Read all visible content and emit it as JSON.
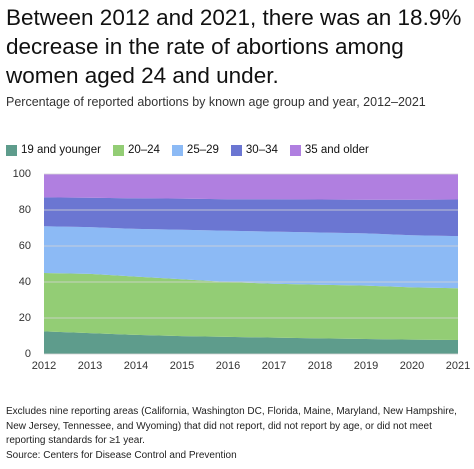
{
  "chart_data": {
    "type": "stacked-area",
    "title": "Between 2012 and 2021, there was an 18.9% decrease in the rate of abortions among women aged 24 and under.",
    "subtitle": "Percentage of reported abortions by known age group and year, 2012–2021",
    "x": [
      2012,
      2013,
      2014,
      2015,
      2016,
      2017,
      2018,
      2019,
      2020,
      2021
    ],
    "xlim": [
      2012,
      2021
    ],
    "xticks": [
      2012,
      2013,
      2014,
      2015,
      2016,
      2017,
      2018,
      2019,
      2020,
      2021
    ],
    "ylim": [
      0,
      100
    ],
    "yticks": [
      0,
      20,
      40,
      60,
      80,
      100
    ],
    "grid": true,
    "series": [
      {
        "name": "19 and younger",
        "color": "#5e9c8c",
        "values": [
          12.6,
          11.6,
          10.6,
          9.9,
          9.5,
          9.1,
          8.7,
          8.3,
          8.0,
          7.8
        ]
      },
      {
        "name": "20–24",
        "color": "#93cd75",
        "values": [
          32.4,
          32.9,
          32.4,
          31.6,
          30.5,
          29.9,
          29.8,
          29.7,
          29.0,
          28.7
        ]
      },
      {
        "name": "25–29",
        "color": "#8cbaf5",
        "values": [
          26,
          26,
          26.5,
          27.5,
          28.5,
          29,
          29,
          29,
          29,
          29
        ]
      },
      {
        "name": "30–34",
        "color": "#6b76d2",
        "values": [
          16,
          16.3,
          17,
          17.3,
          17.5,
          18,
          18.3,
          18.7,
          19.7,
          20.3
        ]
      },
      {
        "name": "35 and older",
        "color": "#b07fe0",
        "values": [
          13,
          13.2,
          13.5,
          13.7,
          14,
          14,
          14.2,
          14.3,
          14.3,
          14.2
        ]
      }
    ],
    "notes": "Excludes nine reporting areas (California, Washington DC, Florida, Maine, Maryland, New Hampshire, New Jersey, Tennessee, and Wyoming) that did not report, did not report by age, or did not meet reporting standards for ≥1 year.",
    "source": "Source: Centers for Disease Control and Prevention"
  }
}
